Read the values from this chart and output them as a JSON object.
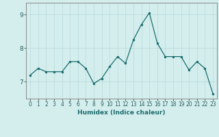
{
  "x": [
    0,
    1,
    2,
    3,
    4,
    5,
    6,
    7,
    8,
    9,
    10,
    11,
    12,
    13,
    14,
    15,
    16,
    17,
    18,
    19,
    20,
    21,
    22,
    23
  ],
  "y": [
    7.2,
    7.4,
    7.3,
    7.3,
    7.3,
    7.6,
    7.6,
    7.4,
    6.95,
    7.1,
    7.45,
    7.75,
    7.55,
    8.25,
    8.7,
    9.05,
    8.15,
    7.75,
    7.75,
    7.75,
    7.35,
    7.6,
    7.4,
    6.65
  ],
  "line_color": "#1a6b6b",
  "marker": "o",
  "marker_size": 2.0,
  "bg_color": "#d4eeee",
  "grid_color": "#b8d8d8",
  "xlabel": "Humidex (Indice chaleur)",
  "ylim": [
    6.5,
    9.35
  ],
  "xlim": [
    -0.5,
    23.5
  ],
  "yticks": [
    7,
    8,
    9
  ],
  "xticks": [
    0,
    1,
    2,
    3,
    4,
    5,
    6,
    7,
    8,
    9,
    10,
    11,
    12,
    13,
    14,
    15,
    16,
    17,
    18,
    19,
    20,
    21,
    22,
    23
  ],
  "tick_fontsize": 5.5,
  "xlabel_fontsize": 6.5,
  "ytick_fontsize": 6.5
}
